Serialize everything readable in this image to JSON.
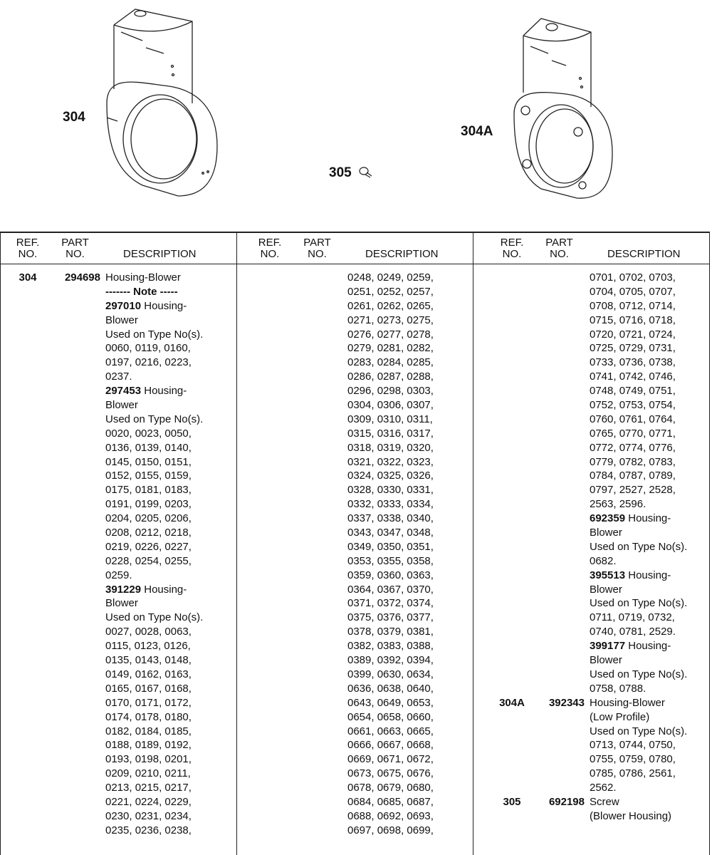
{
  "callouts": {
    "a": "304",
    "b": "305",
    "c": "304A"
  },
  "headers": {
    "ref": "REF.",
    "ref2": "NO.",
    "part": "PART",
    "part2": "NO.",
    "desc": "DESCRIPTION"
  },
  "columns": [
    [
      {
        "ref": "304",
        "part": "294698",
        "t": "Housing-Blower"
      },
      {
        "b": "------- Note -----"
      },
      {
        "b": "297010",
        "t": " Housing-"
      },
      {
        "t": "Blower"
      },
      {
        "t": "Used on Type No(s)."
      },
      {
        "t": "0060, 0119, 0160,"
      },
      {
        "t": "0197, 0216, 0223,"
      },
      {
        "t": "0237."
      },
      {
        "b": "297453",
        "t": " Housing-"
      },
      {
        "t": "Blower"
      },
      {
        "t": "Used on Type No(s)."
      },
      {
        "t": "0020, 0023, 0050,"
      },
      {
        "t": "0136, 0139, 0140,"
      },
      {
        "t": "0145, 0150, 0151,"
      },
      {
        "t": "0152, 0155, 0159,"
      },
      {
        "t": "0175, 0181, 0183,"
      },
      {
        "t": "0191, 0199, 0203,"
      },
      {
        "t": "0204, 0205, 0206,"
      },
      {
        "t": "0208, 0212, 0218,"
      },
      {
        "t": "0219, 0226, 0227,"
      },
      {
        "t": "0228, 0254, 0255,"
      },
      {
        "t": "0259."
      },
      {
        "b": "391229",
        "t": " Housing-"
      },
      {
        "t": "Blower"
      },
      {
        "t": "Used on Type No(s)."
      },
      {
        "t": "0027, 0028, 0063,"
      },
      {
        "t": "0115, 0123, 0126,"
      },
      {
        "t": "0135, 0143, 0148,"
      },
      {
        "t": "0149, 0162, 0163,"
      },
      {
        "t": "0165, 0167, 0168,"
      },
      {
        "t": "0170, 0171, 0172,"
      },
      {
        "t": "0174, 0178, 0180,"
      },
      {
        "t": "0182, 0184, 0185,"
      },
      {
        "t": "0188, 0189, 0192,"
      },
      {
        "t": "0193, 0198, 0201,"
      },
      {
        "t": "0209, 0210, 0211,"
      },
      {
        "t": "0213, 0215, 0217,"
      },
      {
        "t": "0221, 0224, 0229,"
      },
      {
        "t": "0230, 0231, 0234,"
      },
      {
        "t": "0235, 0236, 0238,"
      }
    ],
    [
      {
        "t": "0248, 0249, 0259,"
      },
      {
        "t": "0251, 0252, 0257,"
      },
      {
        "t": "0261, 0262, 0265,"
      },
      {
        "t": "0271, 0273, 0275,"
      },
      {
        "t": "0276, 0277, 0278,"
      },
      {
        "t": "0279, 0281, 0282,"
      },
      {
        "t": "0283, 0284, 0285,"
      },
      {
        "t": "0286, 0287, 0288,"
      },
      {
        "t": "0296, 0298, 0303,"
      },
      {
        "t": "0304, 0306, 0307,"
      },
      {
        "t": "0309, 0310, 0311,"
      },
      {
        "t": "0315, 0316, 0317,"
      },
      {
        "t": "0318, 0319, 0320,"
      },
      {
        "t": "0321, 0322, 0323,"
      },
      {
        "t": "0324, 0325, 0326,"
      },
      {
        "t": "0328, 0330, 0331,"
      },
      {
        "t": "0332, 0333, 0334,"
      },
      {
        "t": "0337, 0338, 0340,"
      },
      {
        "t": "0343, 0347, 0348,"
      },
      {
        "t": "0349, 0350, 0351,"
      },
      {
        "t": "0353, 0355, 0358,"
      },
      {
        "t": "0359, 0360, 0363,"
      },
      {
        "t": "0364, 0367, 0370,"
      },
      {
        "t": "0371, 0372, 0374,"
      },
      {
        "t": "0375, 0376, 0377,"
      },
      {
        "t": "0378, 0379, 0381,"
      },
      {
        "t": "0382, 0383, 0388,"
      },
      {
        "t": "0389, 0392, 0394,"
      },
      {
        "t": "0399, 0630, 0634,"
      },
      {
        "t": "0636, 0638, 0640,"
      },
      {
        "t": "0643, 0649, 0653,"
      },
      {
        "t": "0654, 0658, 0660,"
      },
      {
        "t": "0661, 0663, 0665,"
      },
      {
        "t": "0666, 0667, 0668,"
      },
      {
        "t": "0669, 0671, 0672,"
      },
      {
        "t": "0673, 0675, 0676,"
      },
      {
        "t": "0678, 0679, 0680,"
      },
      {
        "t": "0684, 0685, 0687,"
      },
      {
        "t": "0688, 0692, 0693,"
      },
      {
        "t": "0697, 0698, 0699,"
      }
    ],
    [
      {
        "t": "0701, 0702, 0703,"
      },
      {
        "t": "0704, 0705, 0707,"
      },
      {
        "t": "0708, 0712, 0714,"
      },
      {
        "t": "0715, 0716, 0718,"
      },
      {
        "t": "0720, 0721, 0724,"
      },
      {
        "t": "0725, 0729, 0731,"
      },
      {
        "t": "0733, 0736, 0738,"
      },
      {
        "t": "0741, 0742, 0746,"
      },
      {
        "t": "0748, 0749, 0751,"
      },
      {
        "t": "0752, 0753, 0754,"
      },
      {
        "t": "0760, 0761, 0764,"
      },
      {
        "t": "0765, 0770, 0771,"
      },
      {
        "t": "0772, 0774, 0776,"
      },
      {
        "t": "0779, 0782, 0783,"
      },
      {
        "t": "0784, 0787, 0789,"
      },
      {
        "t": "0797, 2527, 2528,"
      },
      {
        "t": "2563, 2596."
      },
      {
        "b": "692359",
        "t": " Housing-"
      },
      {
        "t": "Blower"
      },
      {
        "t": "Used on Type No(s)."
      },
      {
        "t": "0682."
      },
      {
        "b": "395513",
        "t": " Housing-"
      },
      {
        "t": "Blower"
      },
      {
        "t": "Used on Type No(s)."
      },
      {
        "t": "0711, 0719, 0732,"
      },
      {
        "t": "0740, 0781, 2529."
      },
      {
        "b": "399177",
        "t": " Housing-"
      },
      {
        "t": "Blower"
      },
      {
        "t": "Used on Type No(s)."
      },
      {
        "t": "0758, 0788."
      },
      {
        "ref": "304A",
        "part": "392343",
        "t": "Housing-Blower"
      },
      {
        "t": "(Low Profile)"
      },
      {
        "t": "Used on Type No(s)."
      },
      {
        "t": "0713, 0744, 0750,"
      },
      {
        "t": "0755, 0759, 0780,"
      },
      {
        "t": "0785, 0786, 2561,"
      },
      {
        "t": "2562."
      },
      {
        "ref": "305",
        "part": "692198",
        "t": "Screw"
      },
      {
        "t": "(Blower Housing)"
      }
    ]
  ]
}
